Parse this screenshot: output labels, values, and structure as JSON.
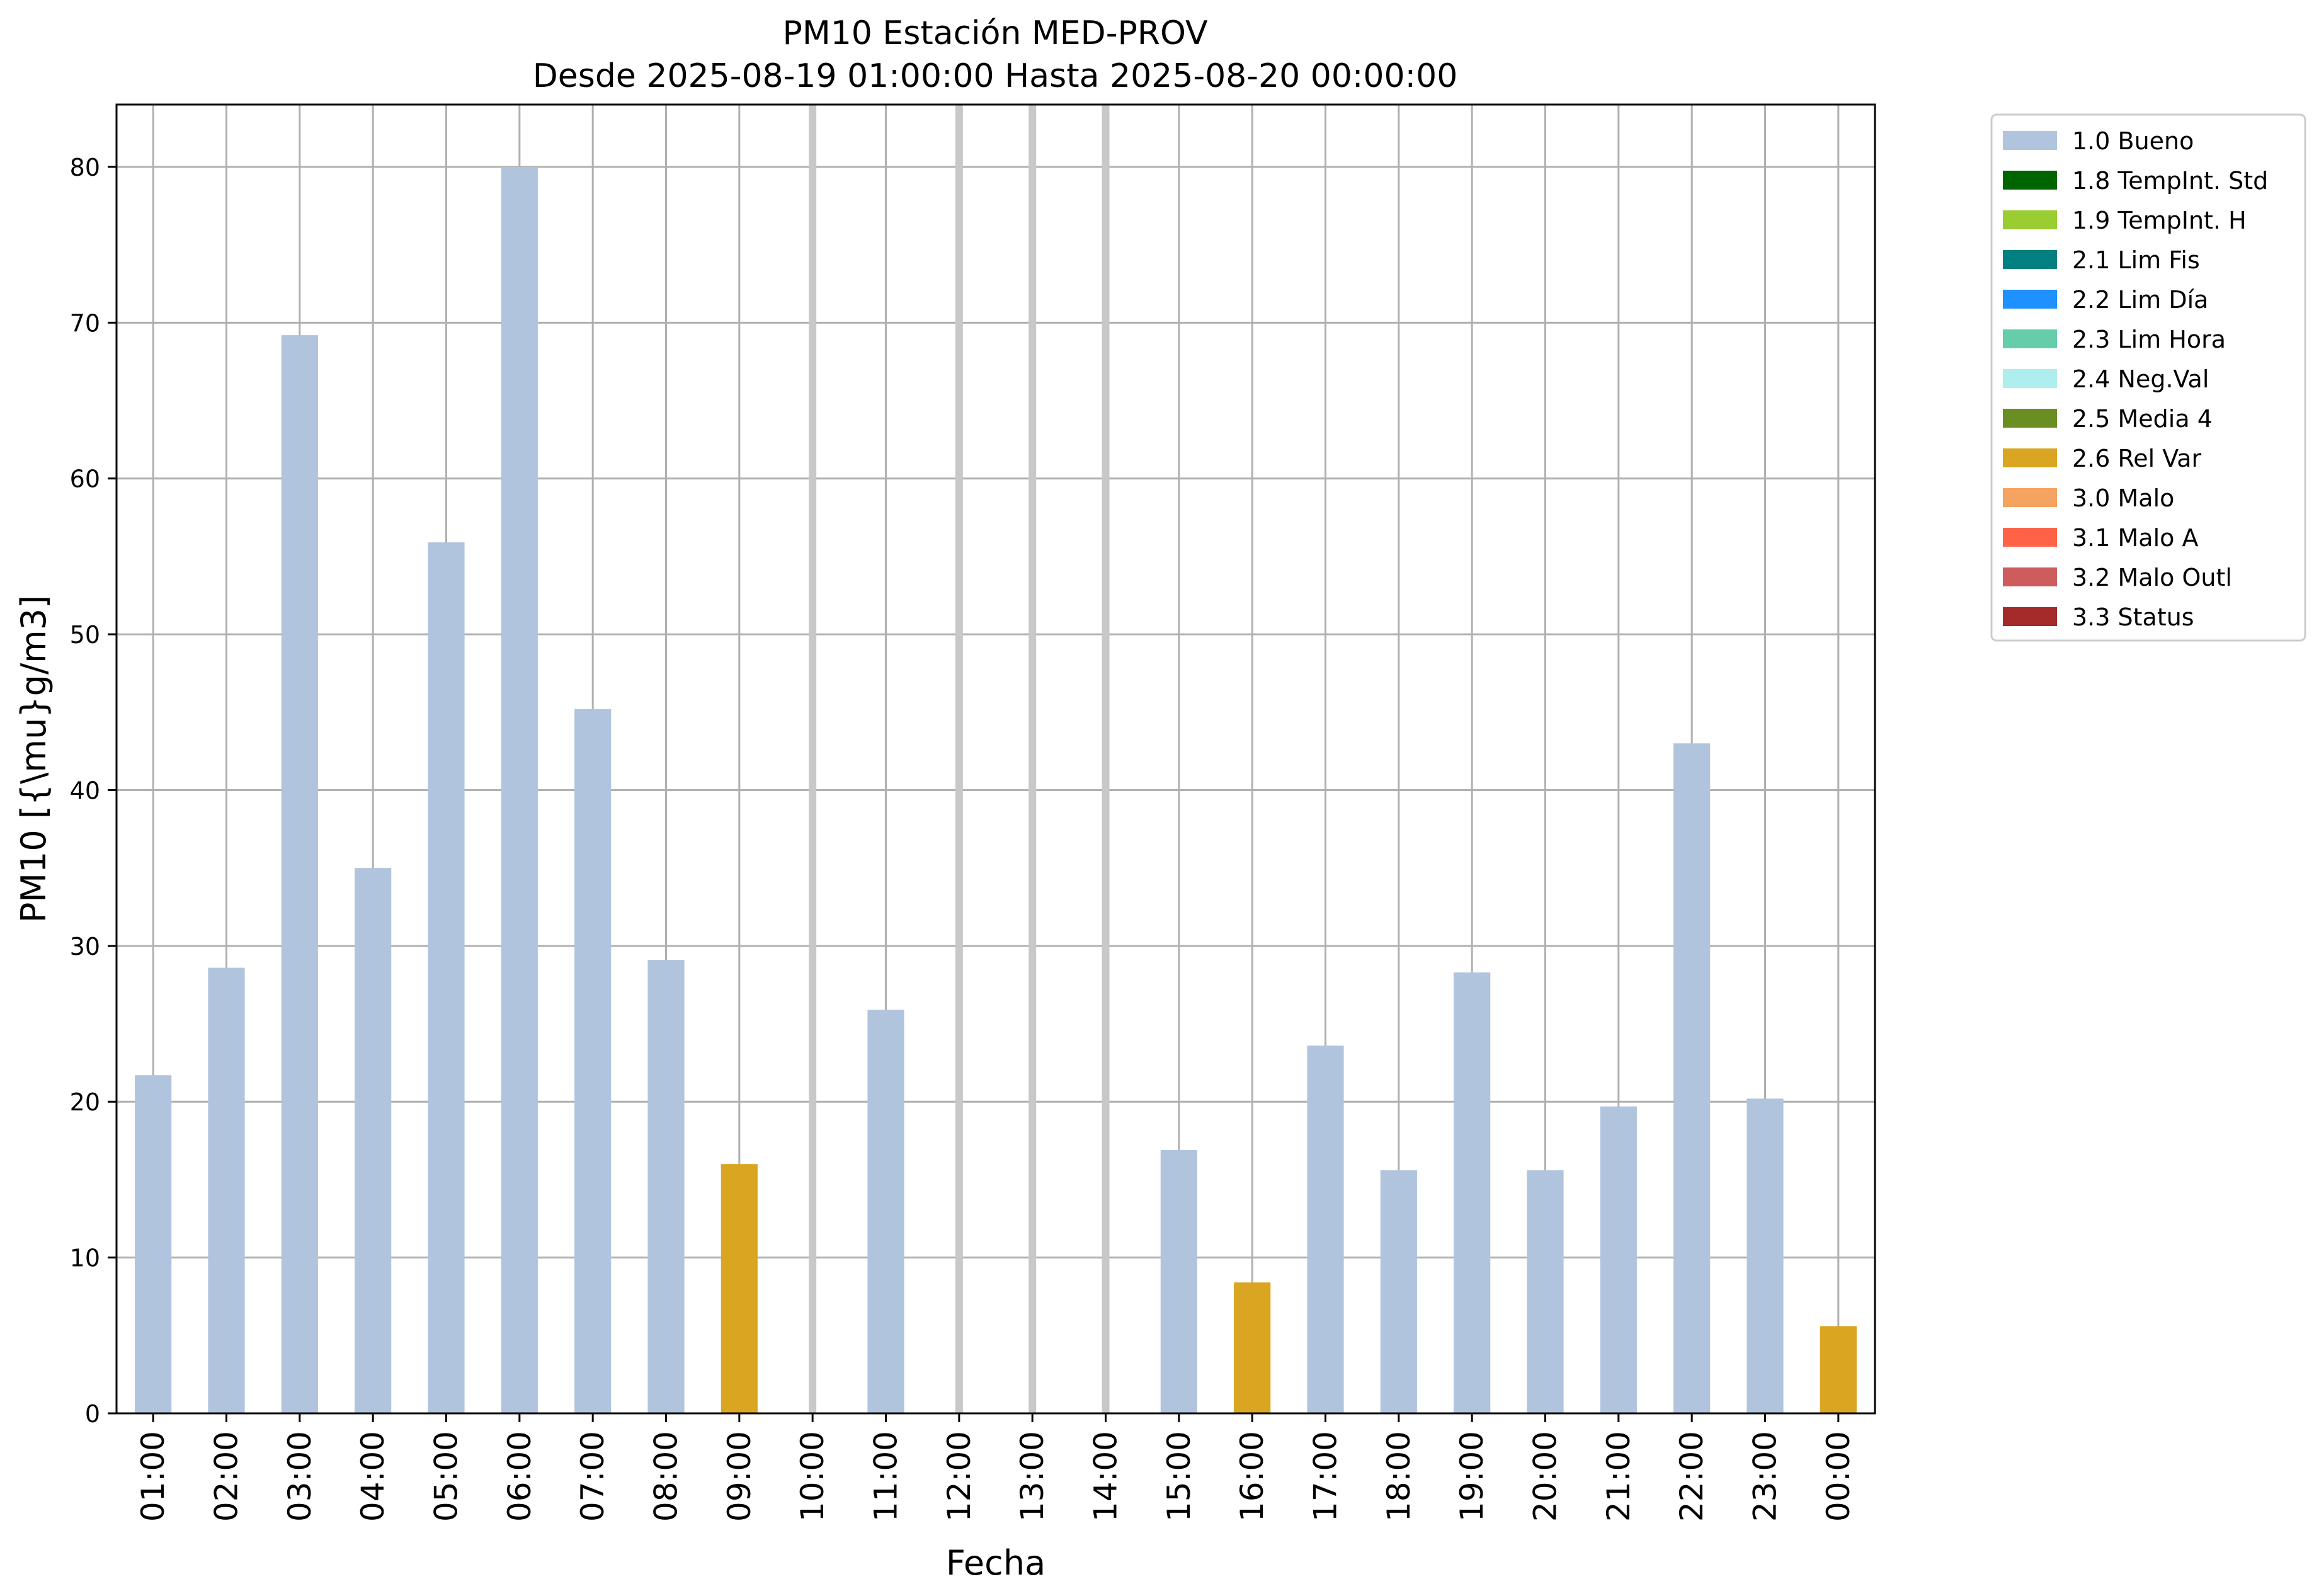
{
  "chart_data": {
    "type": "bar",
    "title": "PM10 Estación MED-PROV",
    "subtitle": "Desde 2025-08-19 01:00:00 Hasta 2025-08-20 00:00:00",
    "xlabel": "Fecha",
    "ylabel": "PM10 [{\\mu}g/m3]",
    "ylim": [
      0,
      84
    ],
    "yticks": [
      0,
      10,
      20,
      30,
      40,
      50,
      60,
      70,
      80
    ],
    "grid": true,
    "legend_position": "outside-top-right",
    "categories": [
      "01:00",
      "02:00",
      "03:00",
      "04:00",
      "05:00",
      "06:00",
      "07:00",
      "08:00",
      "09:00",
      "10:00",
      "11:00",
      "12:00",
      "13:00",
      "14:00",
      "15:00",
      "16:00",
      "17:00",
      "18:00",
      "19:00",
      "20:00",
      "21:00",
      "22:00",
      "23:00",
      "00:00"
    ],
    "values": [
      21.7,
      28.6,
      69.2,
      35.0,
      55.9,
      80.0,
      45.2,
      29.1,
      16.0,
      null,
      25.9,
      null,
      null,
      null,
      16.9,
      8.4,
      23.6,
      15.6,
      28.3,
      15.6,
      19.7,
      43.0,
      20.2,
      5.6
    ],
    "flags": [
      "1.0",
      "1.0",
      "1.0",
      "1.0",
      "1.0",
      "1.0",
      "1.0",
      "1.0",
      "2.6",
      null,
      "1.0",
      null,
      null,
      null,
      "1.0",
      "2.6",
      "1.0",
      "1.0",
      "1.0",
      "1.0",
      "1.0",
      "1.0",
      "1.0",
      "2.6"
    ],
    "missing_markers": [
      "10:00",
      "12:00",
      "13:00",
      "14:00"
    ],
    "missing_marker_color": "#c8c8c8",
    "legend": [
      {
        "code": "1.0",
        "label": "1.0 Bueno",
        "color": "#b0c4de"
      },
      {
        "code": "1.8",
        "label": "1.8 TempInt. Std",
        "color": "#006400"
      },
      {
        "code": "1.9",
        "label": "1.9 TempInt. H",
        "color": "#9acd32"
      },
      {
        "code": "2.1",
        "label": "2.1 Lim Fis",
        "color": "#008080"
      },
      {
        "code": "2.2",
        "label": "2.2 Lim Día",
        "color": "#1e90ff"
      },
      {
        "code": "2.3",
        "label": "2.3 Lim Hora",
        "color": "#66cdaa"
      },
      {
        "code": "2.4",
        "label": "2.4 Neg.Val",
        "color": "#afeeee"
      },
      {
        "code": "2.5",
        "label": "2.5 Media 4",
        "color": "#6b8e23"
      },
      {
        "code": "2.6",
        "label": "2.6 Rel Var",
        "color": "#daa520"
      },
      {
        "code": "3.0",
        "label": "3.0 Malo",
        "color": "#f4a460"
      },
      {
        "code": "3.1",
        "label": "3.1 Malo A",
        "color": "#ff6347"
      },
      {
        "code": "3.2",
        "label": "3.2 Malo Outl",
        "color": "#cd5c5c"
      },
      {
        "code": "3.3",
        "label": "3.3 Status",
        "color": "#a52a2a"
      }
    ]
  }
}
